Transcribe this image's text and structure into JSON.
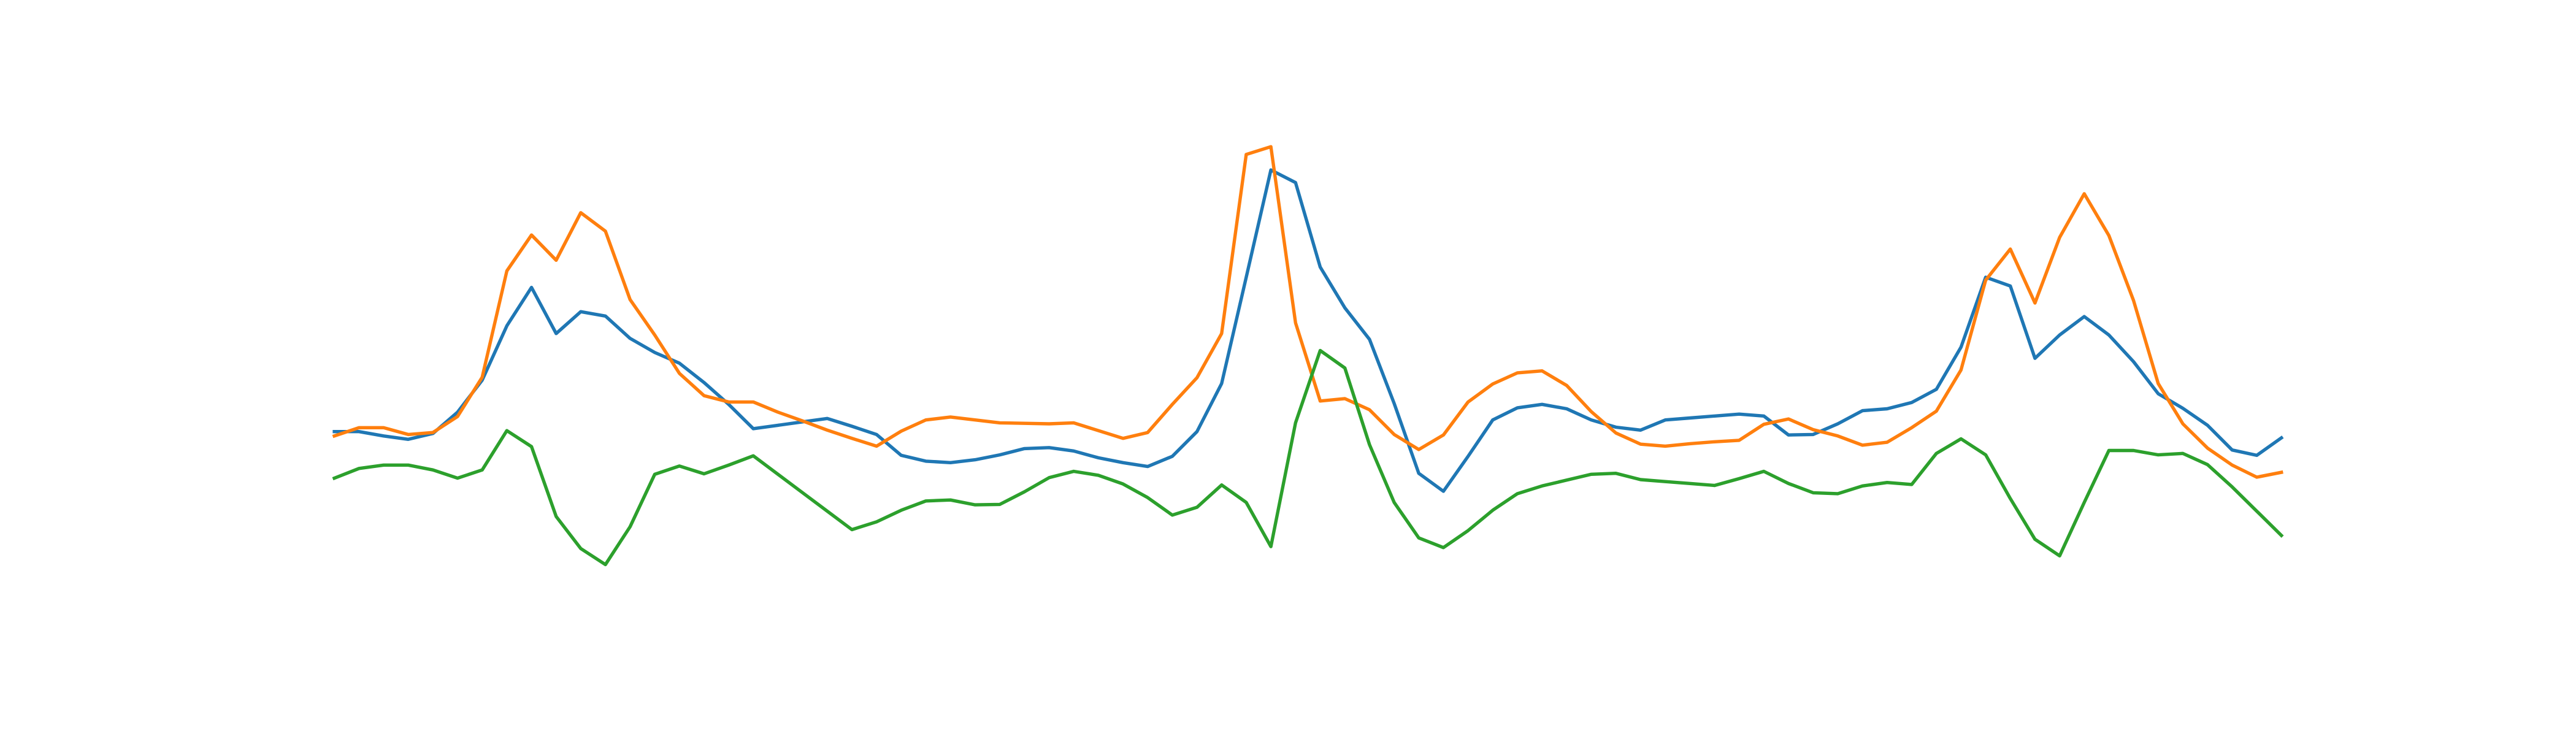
{
  "chart_data": {
    "type": "line",
    "title": "",
    "xlabel": "",
    "ylabel": "",
    "axes_visible": false,
    "grid": false,
    "legend": "none",
    "xlim": [
      -0.5,
      80.5
    ],
    "ylim": [
      -1.0,
      10.5
    ],
    "x": [
      0,
      1,
      2,
      3,
      4,
      5,
      6,
      7,
      8,
      9,
      10,
      11,
      12,
      13,
      14,
      15,
      16,
      17,
      18,
      19,
      20,
      21,
      22,
      23,
      24,
      25,
      26,
      27,
      28,
      29,
      30,
      31,
      32,
      33,
      34,
      35,
      36,
      37,
      38,
      39,
      40,
      41,
      42,
      43,
      44,
      45,
      46,
      47,
      48,
      49,
      50,
      51,
      52,
      53,
      54,
      55,
      56,
      57,
      58,
      59,
      60,
      61,
      62,
      63,
      64,
      65,
      66,
      67,
      68,
      69,
      70,
      71,
      72,
      73,
      74,
      75,
      76,
      77,
      78,
      79
    ],
    "series": [
      {
        "color": "#1f77b4",
        "values": [
          3.44,
          3.44,
          3.35,
          3.28,
          3.4,
          3.84,
          4.5,
          5.62,
          6.41,
          5.46,
          5.91,
          5.82,
          5.36,
          5.07,
          4.85,
          4.45,
          4.0,
          3.5,
          3.57,
          3.64,
          3.71,
          3.55,
          3.38,
          2.95,
          2.83,
          2.8,
          2.86,
          2.96,
          3.09,
          3.11,
          3.04,
          2.9,
          2.8,
          2.72,
          2.93,
          3.44,
          4.43,
          6.62,
          8.83,
          8.57,
          6.83,
          5.99,
          5.34,
          4.02,
          2.58,
          2.21,
          2.93,
          3.68,
          3.93,
          4.0,
          3.91,
          3.68,
          3.53,
          3.47,
          3.68,
          3.72,
          3.76,
          3.8,
          3.76,
          3.37,
          3.38,
          3.6,
          3.87,
          3.91,
          4.04,
          4.31,
          5.18,
          6.62,
          6.44,
          4.95,
          5.43,
          5.81,
          5.43,
          4.88,
          4.22,
          3.92,
          3.57,
          3.06,
          2.95,
          3.31
        ]
      },
      {
        "color": "#ff7f0e",
        "values": [
          3.35,
          3.52,
          3.52,
          3.38,
          3.42,
          3.75,
          4.56,
          6.75,
          7.49,
          6.97,
          7.95,
          7.57,
          6.16,
          5.43,
          4.64,
          4.18,
          4.05,
          4.05,
          3.84,
          3.66,
          3.47,
          3.3,
          3.14,
          3.45,
          3.68,
          3.74,
          3.68,
          3.62,
          3.61,
          3.6,
          3.62,
          3.46,
          3.3,
          3.42,
          4.0,
          4.55,
          5.46,
          9.15,
          9.31,
          5.68,
          4.07,
          4.12,
          3.89,
          3.38,
          3.07,
          3.37,
          4.05,
          4.42,
          4.65,
          4.69,
          4.39,
          3.85,
          3.41,
          3.18,
          3.14,
          3.19,
          3.23,
          3.26,
          3.59,
          3.7,
          3.48,
          3.35,
          3.16,
          3.22,
          3.52,
          3.86,
          4.71,
          6.56,
          7.2,
          6.09,
          7.44,
          8.34,
          7.48,
          6.14,
          4.43,
          3.6,
          3.1,
          2.75,
          2.5,
          2.6
        ]
      },
      {
        "color": "#2ca02c",
        "values": [
          2.48,
          2.68,
          2.75,
          2.75,
          2.65,
          2.48,
          2.65,
          3.46,
          3.13,
          1.69,
          1.03,
          0.7,
          1.48,
          2.56,
          2.73,
          2.57,
          2.75,
          2.94,
          2.56,
          2.18,
          1.8,
          1.42,
          1.58,
          1.82,
          2.01,
          2.03,
          1.93,
          1.94,
          2.2,
          2.49,
          2.62,
          2.54,
          2.36,
          2.08,
          1.72,
          1.88,
          2.34,
          1.98,
          1.07,
          3.62,
          5.11,
          4.75,
          3.17,
          1.98,
          1.25,
          1.05,
          1.4,
          1.82,
          2.16,
          2.32,
          2.44,
          2.56,
          2.58,
          2.45,
          2.41,
          2.37,
          2.33,
          2.47,
          2.62,
          2.37,
          2.18,
          2.16,
          2.32,
          2.39,
          2.35,
          2.99,
          3.29,
          2.96,
          2.06,
          1.22,
          0.88,
          1.98,
          3.05,
          3.05,
          2.96,
          2.99,
          2.76,
          2.3,
          1.8,
          1.3
        ]
      }
    ]
  }
}
